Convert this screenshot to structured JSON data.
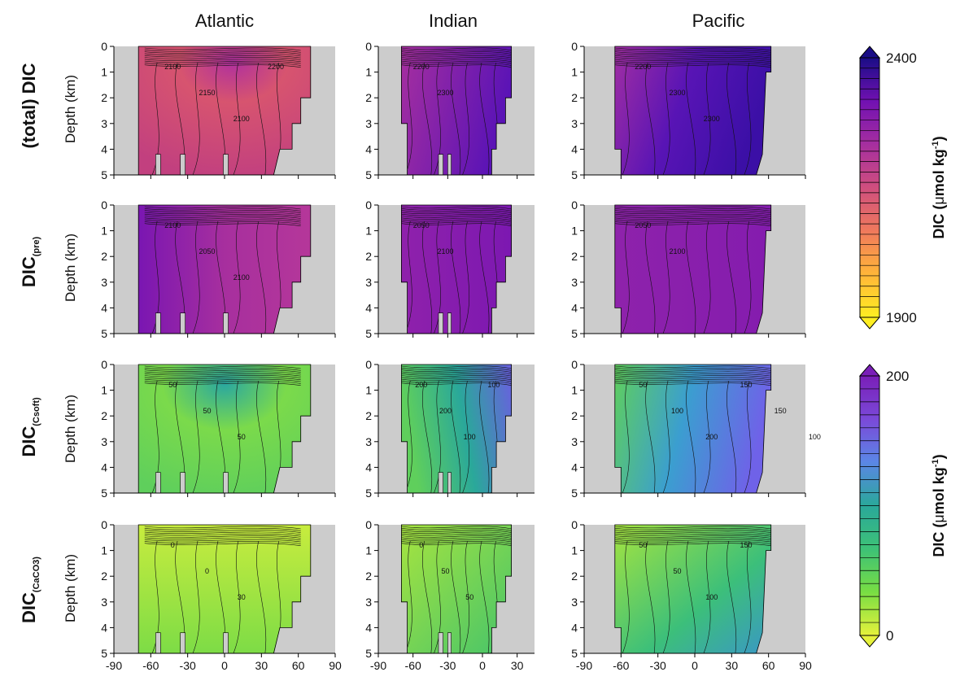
{
  "chart_data": {
    "type": "heatmap",
    "columns": [
      "Atlantic",
      "Indian",
      "Pacific"
    ],
    "rows": [
      {
        "label": "(total) DIC",
        "sub": "",
        "colorbar": 0,
        "contour_labels": {
          "Atlantic": [
            "2100",
            "2150",
            "2100",
            "2200"
          ],
          "Indian": [
            "2200",
            "2300"
          ],
          "Pacific": [
            "2200",
            "2300",
            "2300"
          ]
        }
      },
      {
        "label": "DIC",
        "sub": "(pre)",
        "colorbar": 0,
        "contour_labels": {
          "Atlantic": [
            "2100",
            "2050",
            "2100"
          ],
          "Indian": [
            "2050",
            "2100"
          ],
          "Pacific": [
            "2050",
            "2100"
          ]
        }
      },
      {
        "label": "DIC",
        "sub": "(Csoft)",
        "colorbar": 1,
        "contour_labels": {
          "Atlantic": [
            "50",
            "50",
            "50"
          ],
          "Indian": [
            "200",
            "200",
            "100",
            "100"
          ],
          "Pacific": [
            "50",
            "100",
            "200",
            "150",
            "150",
            "100"
          ]
        }
      },
      {
        "label": "DIC",
        "sub": "(CaCO3)",
        "colorbar": 1,
        "contour_labels": {
          "Atlantic": [
            "0",
            "0",
            "30"
          ],
          "Indian": [
            "0",
            "50",
            "50"
          ],
          "Pacific": [
            "50",
            "50",
            "100",
            "150"
          ]
        }
      }
    ],
    "ylabel": "Depth (km)",
    "y_ticks": [
      0,
      1,
      2,
      3,
      4,
      5
    ],
    "ylim": [
      0,
      5
    ],
    "x_ticks": [
      [
        -90,
        -60,
        -30,
        0,
        30,
        60,
        90
      ],
      [
        -90,
        -60,
        -30,
        0,
        30
      ],
      [
        -90,
        -60,
        -30,
        0,
        30,
        60,
        90
      ]
    ],
    "xlim": [
      [
        -90,
        90
      ],
      [
        -90,
        45
      ],
      [
        -90,
        90
      ]
    ],
    "colorbars": [
      {
        "min": 1900,
        "max": 2400,
        "min_label": "1900",
        "max_label": "2400",
        "levels": 25,
        "label_main": "DIC (",
        "label_mu": "μ",
        "label_unit": "mol kg",
        "label_exp": "-1",
        "label_close": ")",
        "colors": [
          "#ffee22",
          "#ffb43a",
          "#f07a5c",
          "#cf4e7e",
          "#a52ea0",
          "#7211b2",
          "#1a0d86"
        ]
      },
      {
        "min": 0,
        "max": 200,
        "min_label": "0",
        "max_label": "200",
        "levels": 20,
        "label_main": "DIC (",
        "label_mu": "μ",
        "label_unit": "mol kg",
        "label_exp": "-1",
        "label_close": ")",
        "colors": [
          "#e6f23c",
          "#77dd44",
          "#3ec276",
          "#2aa89a",
          "#5b86e6",
          "#7a4ad9",
          "#7a1fb8"
        ]
      }
    ],
    "land_color": "#cccccc",
    "grid": false
  }
}
